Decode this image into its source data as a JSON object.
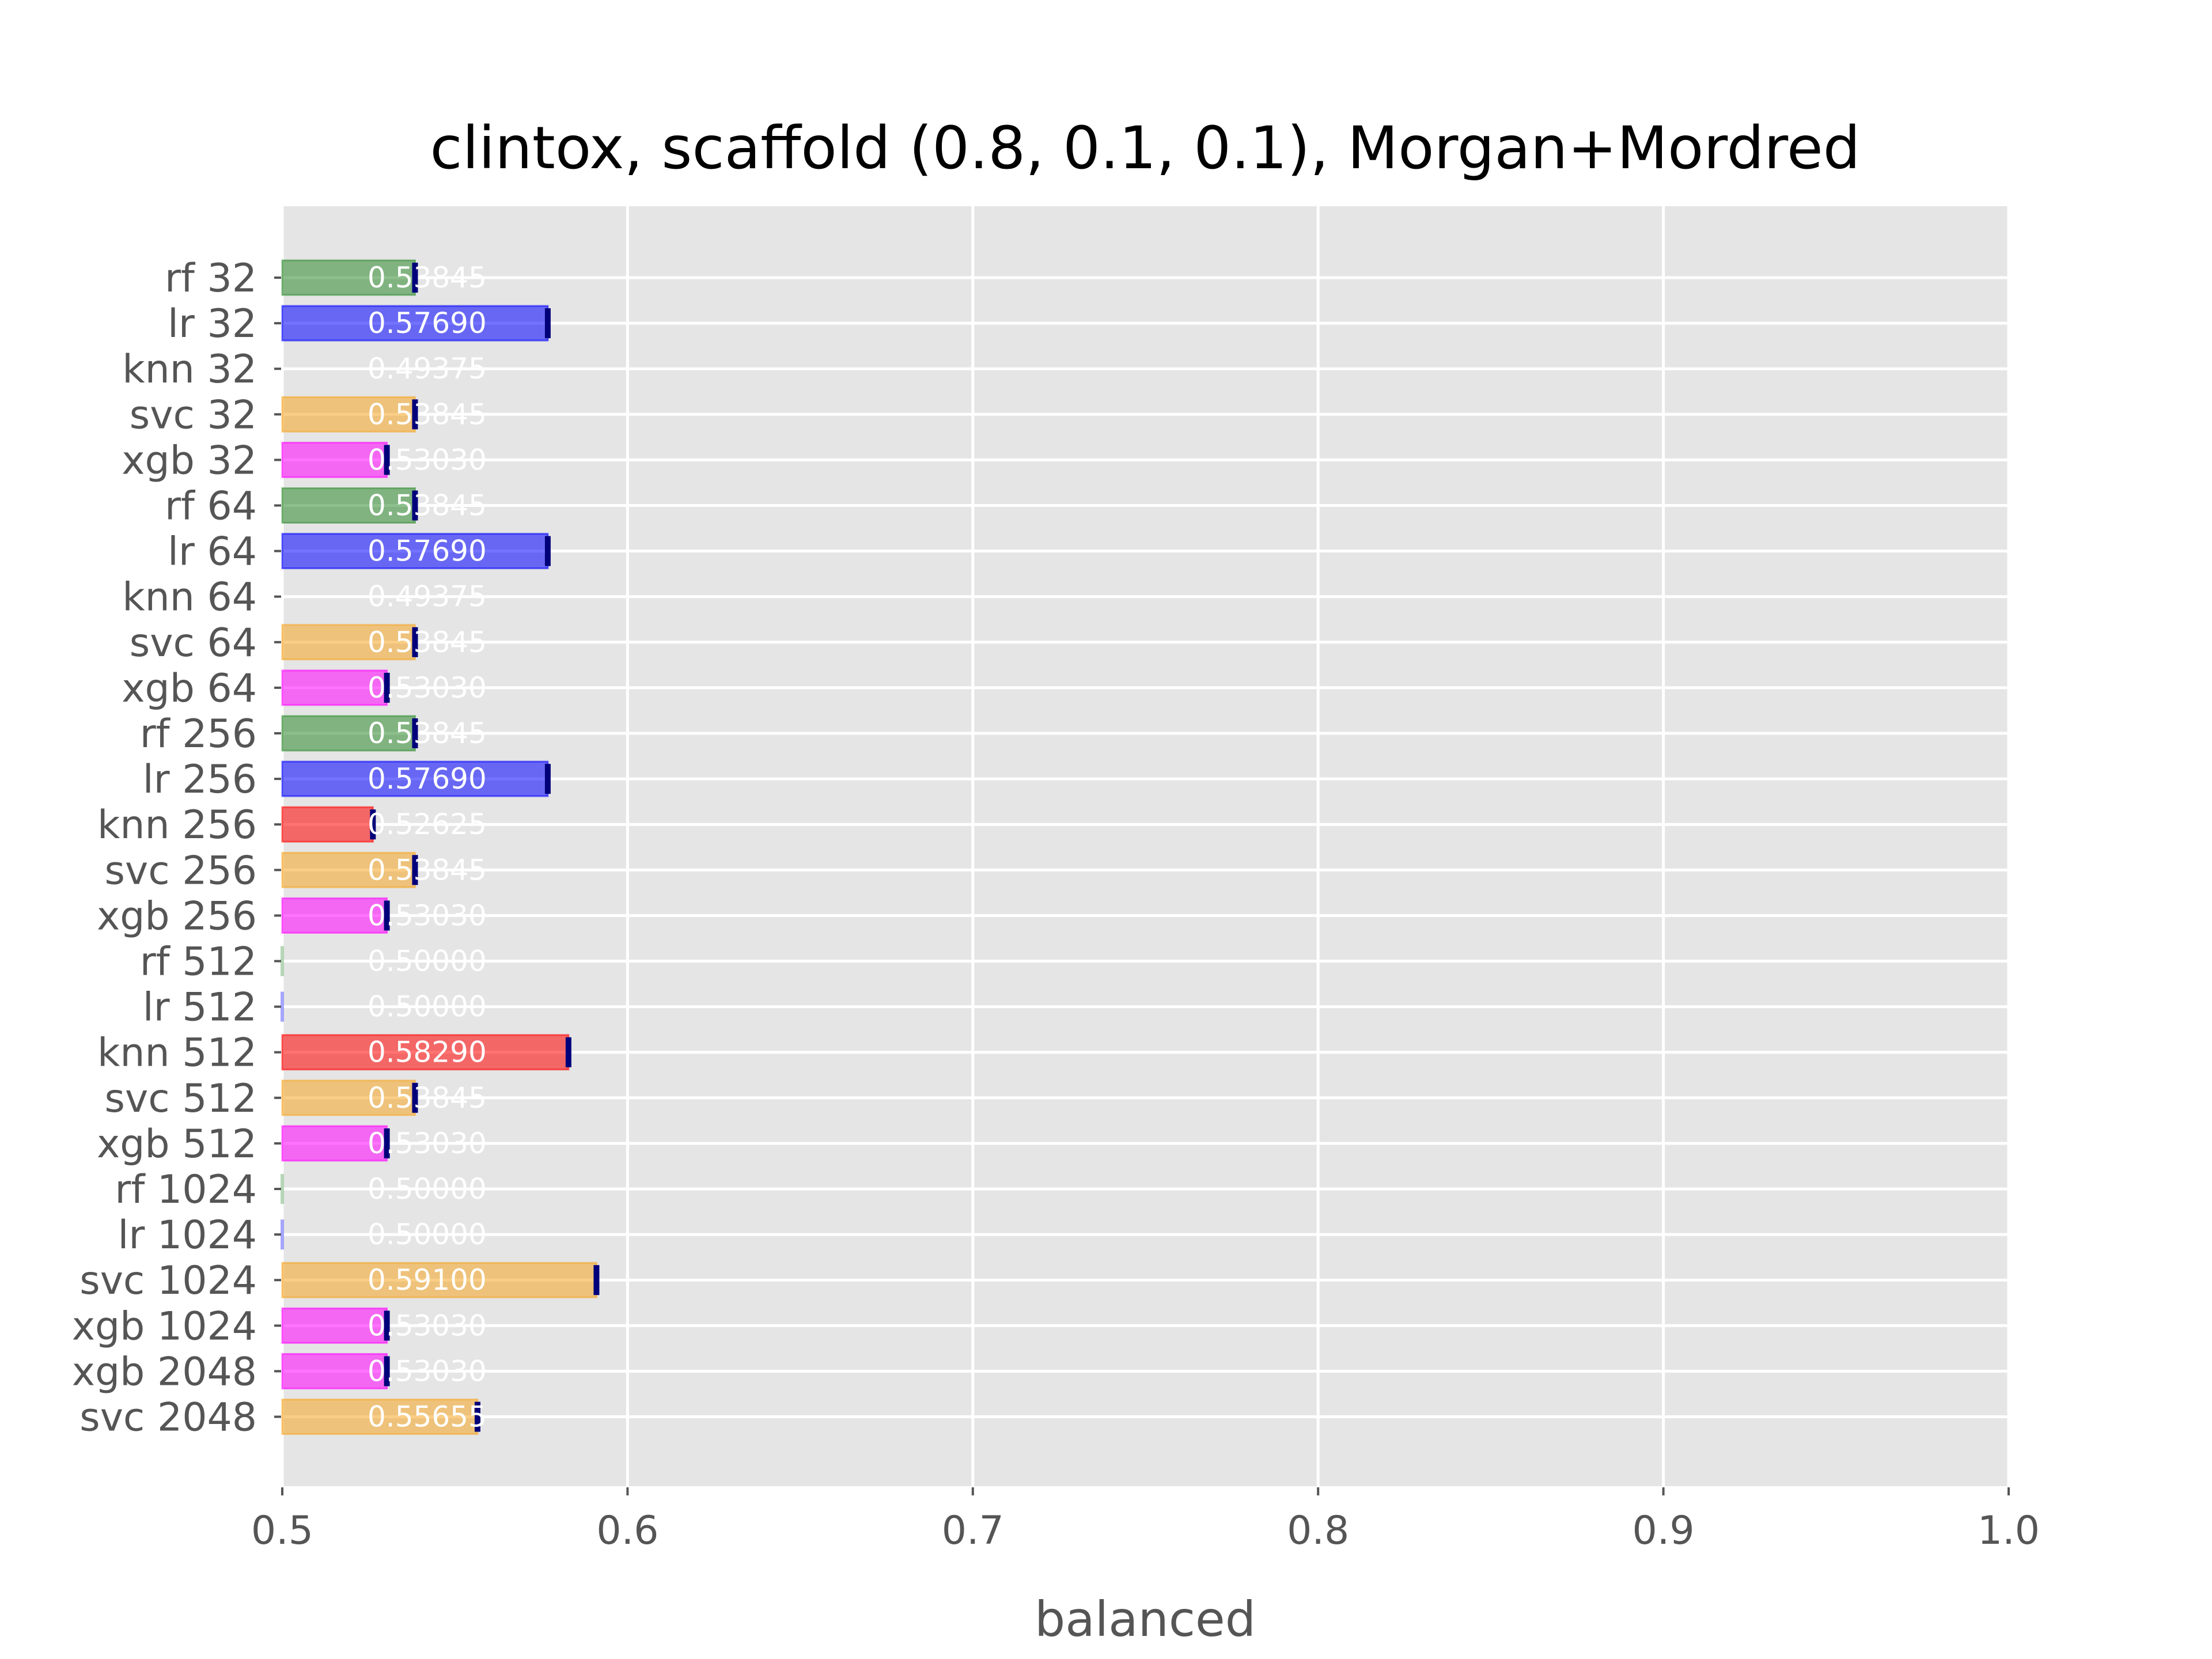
{
  "chart_data": {
    "type": "bar",
    "orientation": "horizontal",
    "title": "clintox, scaffold (0.8, 0.1, 0.1), Morgan+Mordred",
    "xlabel": "balanced",
    "ylabel": "",
    "xlim": [
      0.5,
      1.0
    ],
    "xticks": [
      "0.5",
      "0.6",
      "0.7",
      "0.8",
      "0.9",
      "1.0"
    ],
    "grid": true,
    "categories": [
      "rf 32",
      "lr 32",
      "knn 32",
      "svc 32",
      "xgb 32",
      "rf 64",
      "lr 64",
      "knn 64",
      "svc 64",
      "xgb 64",
      "rf 256",
      "lr 256",
      "knn 256",
      "svc 256",
      "xgb 256",
      "rf 512",
      "lr 512",
      "knn 512",
      "svc 512",
      "xgb 512",
      "rf 1024",
      "lr 1024",
      "svc 1024",
      "xgb 1024",
      "xgb 2048",
      "svc 2048"
    ],
    "values": [
      0.53845,
      0.5769,
      0.49375,
      0.53845,
      0.5303,
      0.53845,
      0.5769,
      0.49375,
      0.53845,
      0.5303,
      0.53845,
      0.5769,
      0.52625,
      0.53845,
      0.5303,
      0.5,
      0.5,
      0.5829,
      0.53845,
      0.5303,
      0.5,
      0.5,
      0.591,
      0.5303,
      0.5303,
      0.55655
    ],
    "value_labels": [
      "0.53845",
      "0.57690",
      "0.49375",
      "0.53845",
      "0.53030",
      "0.53845",
      "0.57690",
      "0.49375",
      "0.53845",
      "0.53030",
      "0.53845",
      "0.57690",
      "0.52625",
      "0.53845",
      "0.53030",
      "0.50000",
      "0.50000",
      "0.58290",
      "0.53845",
      "0.53030",
      "0.50000",
      "0.50000",
      "0.59100",
      "0.53030",
      "0.53030",
      "0.55655"
    ],
    "model_colors": {
      "rf": "#2e8b2e",
      "lr": "#0000ff",
      "knn": "#ff0000",
      "svc": "#f5a623",
      "xgb": "#ff00ff"
    },
    "error_color": "#00007a",
    "background_color": "#e5e5e5",
    "grid_color": "#ffffff"
  }
}
